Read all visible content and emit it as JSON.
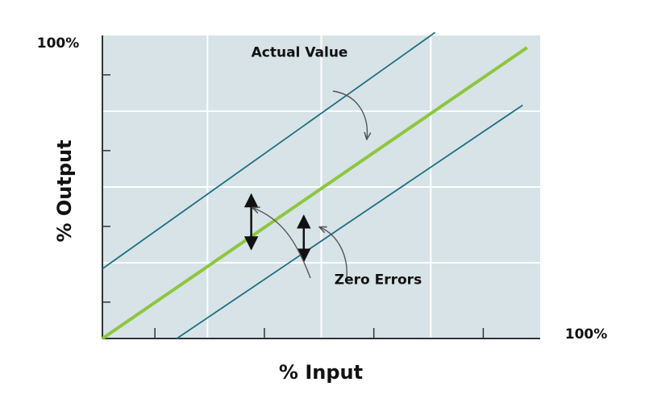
{
  "chart_data": {
    "type": "line",
    "xlabel": "% Input",
    "ylabel": "% Output",
    "x_max_label": "100%",
    "y_max_label": "100%",
    "xlim": [
      0,
      100
    ],
    "ylim": [
      0,
      100
    ],
    "grid": true,
    "series": [
      {
        "role": "actual",
        "color": "#8dc63f",
        "x": [
          0,
          97
        ],
        "y": [
          0,
          96
        ]
      },
      {
        "role": "error-upper",
        "color": "#1f6f84",
        "x": [
          0,
          76
        ],
        "y": [
          23,
          101
        ]
      },
      {
        "role": "error-lower",
        "color": "#1f6f84",
        "x": [
          17,
          96
        ],
        "y": [
          0,
          77
        ]
      }
    ],
    "annotations": [
      {
        "text": "Actual Value",
        "x": 34,
        "y": 93
      },
      {
        "text": "Zero Errors",
        "x": 53,
        "y": 18
      }
    ],
    "error_arrows": [
      {
        "x": 34,
        "y1": 48,
        "y2": 29
      },
      {
        "x": 46,
        "y1": 41,
        "y2": 25
      }
    ]
  }
}
